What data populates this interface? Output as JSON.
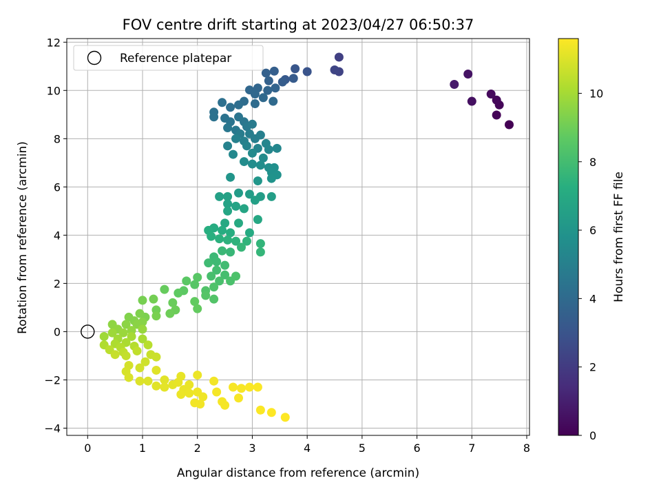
{
  "chart_data": {
    "type": "scatter",
    "title": "FOV centre drift starting at 2023/04/27 06:50:37",
    "xlabel": "Angular distance from reference (arcmin)",
    "ylabel": "Rotation from reference (arcmin)",
    "xlim": [
      -0.38,
      8.05
    ],
    "ylim": [
      -4.3,
      12.15
    ],
    "xticks": [
      0,
      1,
      2,
      3,
      4,
      5,
      6,
      7,
      8
    ],
    "yticks": [
      -4,
      -2,
      0,
      2,
      4,
      6,
      8,
      10,
      12
    ],
    "grid": true,
    "legend": {
      "placement": "top-left",
      "entries": [
        "Reference platepar"
      ]
    },
    "reference_point": {
      "x": 0,
      "y": 0
    },
    "colorbar": {
      "label": "Hours from first FF file",
      "colormap": "viridis",
      "range": [
        0,
        11.6
      ],
      "ticks": [
        0,
        2,
        4,
        6,
        8,
        10
      ]
    },
    "points": [
      [
        7.68,
        8.58,
        0.0
      ],
      [
        7.45,
        8.98,
        0.1
      ],
      [
        7.5,
        9.4,
        0.15
      ],
      [
        7.45,
        9.6,
        0.2
      ],
      [
        7.35,
        9.85,
        0.3
      ],
      [
        7.0,
        9.55,
        0.5
      ],
      [
        6.93,
        10.68,
        0.6
      ],
      [
        6.68,
        10.25,
        0.8
      ],
      [
        4.58,
        11.38,
        2.2
      ],
      [
        4.58,
        10.78,
        2.3
      ],
      [
        4.5,
        10.85,
        2.4
      ],
      [
        4.0,
        10.78,
        3.0
      ],
      [
        3.78,
        10.9,
        3.1
      ],
      [
        3.6,
        10.45,
        3.2
      ],
      [
        3.75,
        10.5,
        3.3
      ],
      [
        3.55,
        10.35,
        3.4
      ],
      [
        3.4,
        10.8,
        3.5
      ],
      [
        3.25,
        10.72,
        3.55
      ],
      [
        3.3,
        10.4,
        3.6
      ],
      [
        3.42,
        10.1,
        3.7
      ],
      [
        3.28,
        10.0,
        3.75
      ],
      [
        3.1,
        10.1,
        3.8
      ],
      [
        2.95,
        10.02,
        3.85
      ],
      [
        3.05,
        9.85,
        3.9
      ],
      [
        3.2,
        9.7,
        3.95
      ],
      [
        3.38,
        9.55,
        4.0
      ],
      [
        3.05,
        9.45,
        4.05
      ],
      [
        2.85,
        9.55,
        4.1
      ],
      [
        2.75,
        9.4,
        4.15
      ],
      [
        2.6,
        9.3,
        4.2
      ],
      [
        2.45,
        9.5,
        4.25
      ],
      [
        2.3,
        9.1,
        4.3
      ],
      [
        2.3,
        8.9,
        4.35
      ],
      [
        2.5,
        8.85,
        4.4
      ],
      [
        2.6,
        8.7,
        4.45
      ],
      [
        2.75,
        8.9,
        4.5
      ],
      [
        2.85,
        8.7,
        4.55
      ],
      [
        2.55,
        8.45,
        4.6
      ],
      [
        2.7,
        8.35,
        4.65
      ],
      [
        2.9,
        8.5,
        4.7
      ],
      [
        3.0,
        8.6,
        4.75
      ],
      [
        2.78,
        8.2,
        4.8
      ],
      [
        2.95,
        8.2,
        4.85
      ],
      [
        3.05,
        8.0,
        4.9
      ],
      [
        3.15,
        8.15,
        4.95
      ],
      [
        2.85,
        7.9,
        5.0
      ],
      [
        2.7,
        8.0,
        5.05
      ],
      [
        2.55,
        7.7,
        5.1
      ],
      [
        2.9,
        7.7,
        5.15
      ],
      [
        3.1,
        7.6,
        5.2
      ],
      [
        3.25,
        7.8,
        5.25
      ],
      [
        3.3,
        7.55,
        5.3
      ],
      [
        3.45,
        7.6,
        5.35
      ],
      [
        2.65,
        7.35,
        5.4
      ],
      [
        3.0,
        7.4,
        5.45
      ],
      [
        3.2,
        7.2,
        5.5
      ],
      [
        2.85,
        7.05,
        5.55
      ],
      [
        3.0,
        6.95,
        5.6
      ],
      [
        3.15,
        6.9,
        5.65
      ],
      [
        3.3,
        6.8,
        5.7
      ],
      [
        3.4,
        6.8,
        5.75
      ],
      [
        3.35,
        6.6,
        5.8
      ],
      [
        3.45,
        6.5,
        5.85
      ],
      [
        3.35,
        6.35,
        5.9
      ],
      [
        2.6,
        6.4,
        6.0
      ],
      [
        3.1,
        6.25,
        6.05
      ],
      [
        2.75,
        5.75,
        6.3
      ],
      [
        2.95,
        5.7,
        6.35
      ],
      [
        3.15,
        5.6,
        6.4
      ],
      [
        3.35,
        5.6,
        6.45
      ],
      [
        3.05,
        5.45,
        6.5
      ],
      [
        2.4,
        5.6,
        6.55
      ],
      [
        2.55,
        5.6,
        6.6
      ],
      [
        2.55,
        5.3,
        6.65
      ],
      [
        2.7,
        5.2,
        6.7
      ],
      [
        2.85,
        5.1,
        6.75
      ],
      [
        2.55,
        5.0,
        6.8
      ],
      [
        3.1,
        4.65,
        6.9
      ],
      [
        2.5,
        4.5,
        6.95
      ],
      [
        2.75,
        4.5,
        7.0
      ],
      [
        2.95,
        4.1,
        7.05
      ],
      [
        2.3,
        4.3,
        7.1
      ],
      [
        2.45,
        4.2,
        7.15
      ],
      [
        2.6,
        4.1,
        7.2
      ],
      [
        2.2,
        4.2,
        7.25
      ],
      [
        2.25,
        3.95,
        7.3
      ],
      [
        2.4,
        3.85,
        7.35
      ],
      [
        2.55,
        3.8,
        7.4
      ],
      [
        2.7,
        3.75,
        7.45
      ],
      [
        2.9,
        3.75,
        7.5
      ],
      [
        3.15,
        3.65,
        7.55
      ],
      [
        3.15,
        3.3,
        7.6
      ],
      [
        2.8,
        3.5,
        7.65
      ],
      [
        2.6,
        3.3,
        7.7
      ],
      [
        2.45,
        3.35,
        7.75
      ],
      [
        2.3,
        3.1,
        7.8
      ],
      [
        2.35,
        2.9,
        7.85
      ],
      [
        2.2,
        2.85,
        7.9
      ],
      [
        2.5,
        2.75,
        7.95
      ],
      [
        2.35,
        2.55,
        8.0
      ],
      [
        2.5,
        2.35,
        8.05
      ],
      [
        2.25,
        2.3,
        8.1
      ],
      [
        2.4,
        2.1,
        8.15
      ],
      [
        2.6,
        2.1,
        8.2
      ],
      [
        2.7,
        2.3,
        8.25
      ],
      [
        2.3,
        1.85,
        8.3
      ],
      [
        2.15,
        1.7,
        8.35
      ],
      [
        2.3,
        1.35,
        8.4
      ],
      [
        2.15,
        1.5,
        8.45
      ],
      [
        1.95,
        1.95,
        8.5
      ],
      [
        2.0,
        2.25,
        8.55
      ],
      [
        1.8,
        2.1,
        8.6
      ],
      [
        1.75,
        1.7,
        8.65
      ],
      [
        1.65,
        1.6,
        8.7
      ],
      [
        1.95,
        1.25,
        8.75
      ],
      [
        2.0,
        0.95,
        8.8
      ],
      [
        1.4,
        1.75,
        8.85
      ],
      [
        1.55,
        1.2,
        8.9
      ],
      [
        1.6,
        0.9,
        8.95
      ],
      [
        1.5,
        0.75,
        9.0
      ],
      [
        1.25,
        0.9,
        9.05
      ],
      [
        1.2,
        1.35,
        9.1
      ],
      [
        1.0,
        1.3,
        9.15
      ],
      [
        1.25,
        0.65,
        9.2
      ],
      [
        1.05,
        0.6,
        9.25
      ],
      [
        0.95,
        0.75,
        9.3
      ],
      [
        0.75,
        0.6,
        9.35
      ],
      [
        0.85,
        0.45,
        9.4
      ],
      [
        1.0,
        0.4,
        9.45
      ],
      [
        0.9,
        0.3,
        9.5
      ],
      [
        0.7,
        0.3,
        9.55
      ],
      [
        0.45,
        0.3,
        9.6
      ],
      [
        0.55,
        0.1,
        9.65
      ],
      [
        0.8,
        0.05,
        9.7
      ],
      [
        1.0,
        0.1,
        9.75
      ],
      [
        0.65,
        -0.05,
        9.8
      ],
      [
        0.45,
        -0.05,
        9.85
      ],
      [
        0.3,
        -0.2,
        9.9
      ],
      [
        0.55,
        -0.3,
        9.95
      ],
      [
        0.8,
        -0.2,
        10.0
      ],
      [
        1.0,
        -0.3,
        10.05
      ],
      [
        0.7,
        -0.45,
        10.1
      ],
      [
        0.5,
        -0.5,
        10.15
      ],
      [
        0.3,
        -0.55,
        10.2
      ],
      [
        0.6,
        -0.65,
        10.25
      ],
      [
        0.85,
        -0.6,
        10.3
      ],
      [
        1.1,
        -0.55,
        10.35
      ],
      [
        0.4,
        -0.75,
        10.4
      ],
      [
        0.65,
        -0.85,
        10.45
      ],
      [
        0.9,
        -0.8,
        10.5
      ],
      [
        0.7,
        -1.0,
        10.55
      ],
      [
        0.5,
        -0.95,
        10.6
      ],
      [
        1.15,
        -0.95,
        10.65
      ],
      [
        1.25,
        -1.05,
        10.7
      ],
      [
        1.05,
        -1.25,
        10.75
      ],
      [
        0.95,
        -1.5,
        10.8
      ],
      [
        0.75,
        -1.4,
        10.85
      ],
      [
        0.7,
        -1.65,
        10.9
      ],
      [
        0.75,
        -1.9,
        10.95
      ],
      [
        0.95,
        -2.05,
        11.0
      ],
      [
        1.1,
        -2.05,
        11.0
      ],
      [
        1.25,
        -1.6,
        11.05
      ],
      [
        1.25,
        -2.25,
        11.1
      ],
      [
        1.4,
        -2.0,
        11.1
      ],
      [
        1.4,
        -2.3,
        11.15
      ],
      [
        1.55,
        -2.2,
        11.15
      ],
      [
        1.7,
        -1.85,
        11.2
      ],
      [
        1.65,
        -2.1,
        11.2
      ],
      [
        1.75,
        -2.4,
        11.25
      ],
      [
        1.85,
        -2.2,
        11.25
      ],
      [
        1.7,
        -2.6,
        11.3
      ],
      [
        1.85,
        -2.55,
        11.3
      ],
      [
        2.0,
        -1.8,
        11.3
      ],
      [
        2.0,
        -2.5,
        11.35
      ],
      [
        2.1,
        -2.7,
        11.35
      ],
      [
        1.95,
        -2.95,
        11.4
      ],
      [
        2.05,
        -3.0,
        11.4
      ],
      [
        2.3,
        -2.05,
        11.4
      ],
      [
        2.35,
        -2.5,
        11.45
      ],
      [
        2.45,
        -2.9,
        11.45
      ],
      [
        2.5,
        -3.05,
        11.45
      ],
      [
        2.65,
        -2.3,
        11.5
      ],
      [
        2.75,
        -2.75,
        11.5
      ],
      [
        2.8,
        -2.35,
        11.5
      ],
      [
        2.95,
        -2.3,
        11.55
      ],
      [
        3.1,
        -2.3,
        11.55
      ],
      [
        3.15,
        -3.25,
        11.55
      ],
      [
        3.35,
        -3.35,
        11.6
      ],
      [
        3.6,
        -3.55,
        11.6
      ]
    ]
  }
}
